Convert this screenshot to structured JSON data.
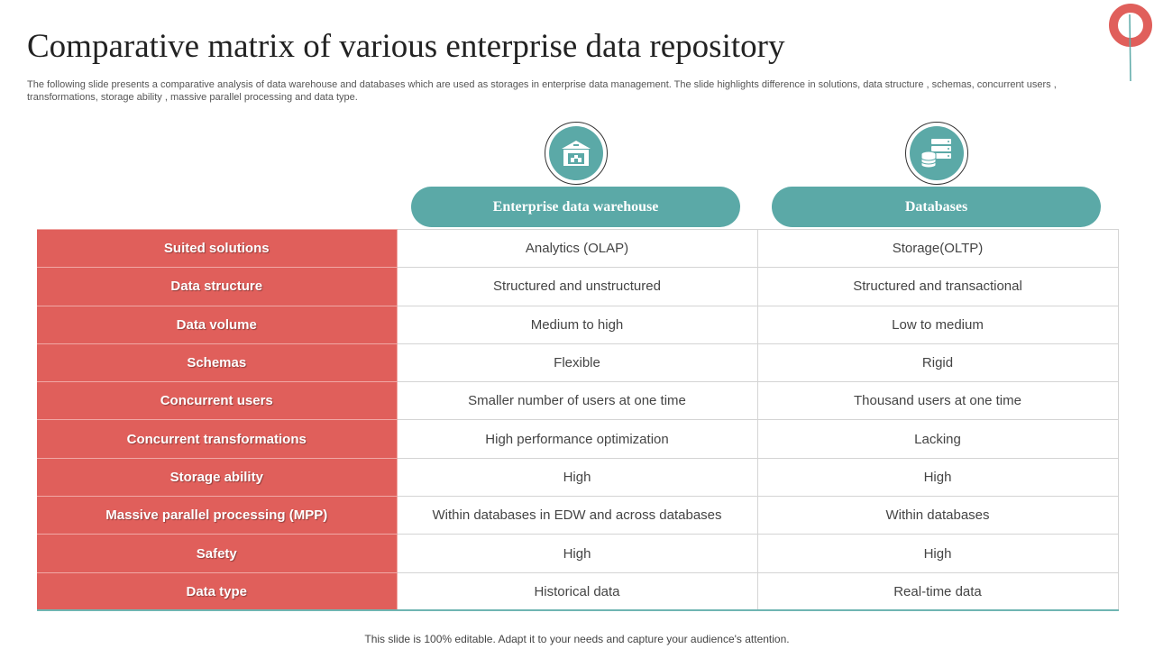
{
  "slide": {
    "title": "Comparative matrix of various enterprise data repository",
    "subtitle": "The following slide presents a comparative analysis of data warehouse and databases which are used as storages in enterprise data management. The slide highlights difference in solutions, data structure , schemas, concurrent users , transformations, storage ability , massive parallel processing and data type.",
    "footer": "This slide is 100% editable. Adapt it to your needs and capture your audience's attention."
  },
  "columns": [
    {
      "label": "Enterprise data warehouse",
      "icon": "warehouse-icon"
    },
    {
      "label": "Databases",
      "icon": "database-icon"
    }
  ],
  "rows": [
    {
      "label": "Suited solutions",
      "edw": "Analytics (OLAP)",
      "db": "Storage(OLTP)"
    },
    {
      "label": "Data structure",
      "edw": "Structured and unstructured",
      "db": "Structured and transactional"
    },
    {
      "label": "Data volume",
      "edw": "Medium to high",
      "db": "Low to medium"
    },
    {
      "label": "Schemas",
      "edw": "Flexible",
      "db": "Rigid"
    },
    {
      "label": "Concurrent users",
      "edw": "Smaller number of users at one time",
      "db": "Thousand users at one time"
    },
    {
      "label": "Concurrent transformations",
      "edw": "High performance optimization",
      "db": "Lacking"
    },
    {
      "label": "Storage ability",
      "edw": "High",
      "db": "High"
    },
    {
      "label": "Massive parallel processing (MPP)",
      "edw": "Within databases in EDW and across databases",
      "db": "Within databases"
    },
    {
      "label": "Safety",
      "edw": "High",
      "db": "High"
    },
    {
      "label": "Data type",
      "edw": "Historical data",
      "db": "Real-time data"
    }
  ],
  "colors": {
    "accent_red": "#e05f5b",
    "accent_teal": "#5ba9a7",
    "logo_red": "#e05f5b"
  }
}
